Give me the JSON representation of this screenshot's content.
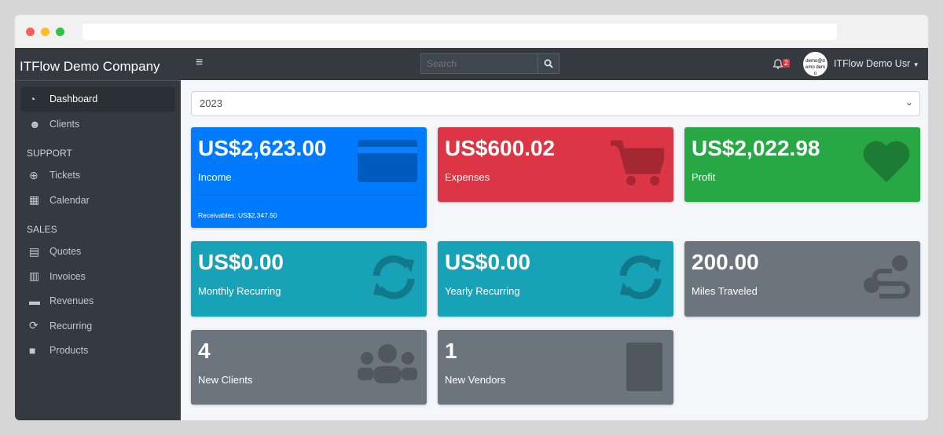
{
  "sidebar": {
    "brand": "ITFlow Demo Company",
    "items": [
      {
        "label": "Dashboard",
        "icon": "tachometer-icon"
      },
      {
        "label": "Clients",
        "icon": "users-icon"
      }
    ],
    "support_header": "SUPPORT",
    "support": [
      {
        "label": "Tickets",
        "icon": "life-ring-icon"
      },
      {
        "label": "Calendar",
        "icon": "calendar-icon"
      }
    ],
    "sales_header": "SALES",
    "sales": [
      {
        "label": "Quotes",
        "icon": "file-icon"
      },
      {
        "label": "Invoices",
        "icon": "invoice-icon"
      },
      {
        "label": "Revenues",
        "icon": "credit-card-icon"
      },
      {
        "label": "Recurring",
        "icon": "sync-icon"
      },
      {
        "label": "Products",
        "icon": "box-icon"
      }
    ]
  },
  "topbar": {
    "search_placeholder": "Search",
    "notification_count": "2",
    "avatar_text": "demo@demo demo",
    "user": "ITFlow Demo Usr"
  },
  "year_select": "2023",
  "cards": [
    {
      "value": "US$2,623.00",
      "label": "Income",
      "footer": "Receivables: US$2,347.50",
      "color": "#007bff"
    },
    {
      "value": "US$600.02",
      "label": "Expenses",
      "color": "#dc3545"
    },
    {
      "value": "US$2,022.98",
      "label": "Profit",
      "color": "#28a745"
    },
    {
      "value": "US$0.00",
      "label": "Monthly Recurring",
      "color": "#17a2b8"
    },
    {
      "value": "US$0.00",
      "label": "Yearly Recurring",
      "color": "#17a2b8"
    },
    {
      "value": "200.00",
      "label": "Miles Traveled",
      "color": "#6c757d"
    },
    {
      "value": "4",
      "label": "New Clients",
      "color": "#6c757d"
    },
    {
      "value": "1",
      "label": "New Vendors",
      "color": "#6c757d"
    }
  ]
}
